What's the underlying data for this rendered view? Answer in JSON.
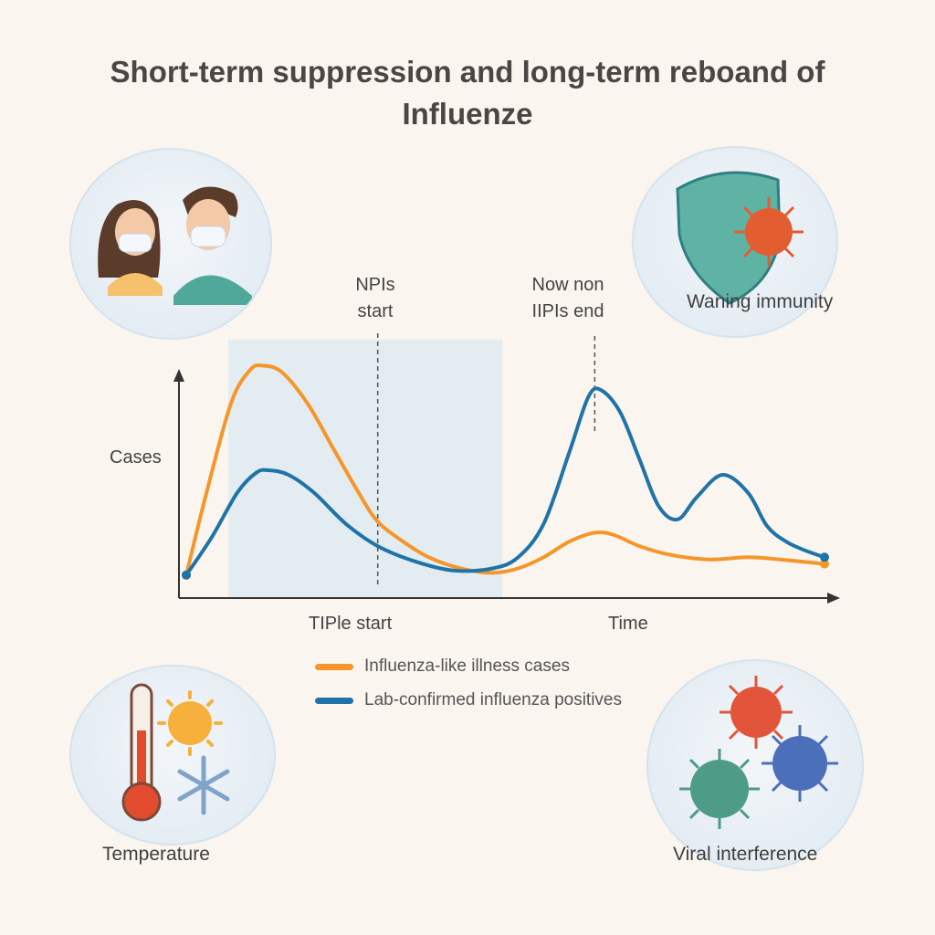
{
  "title": {
    "line1": "Short-term suppression and long-term reboand of",
    "line2": "Influenze"
  },
  "illustrations": {
    "masks": {
      "icon": "masked-people-icon"
    },
    "immunity": {
      "label": "Waning immunity",
      "icon": "shield-virus-icon"
    },
    "temperature": {
      "label": "Temperature",
      "icon": "thermometer-sun-snow-icon"
    },
    "viral": {
      "label": "Viral interference",
      "icon": "viruses-icon"
    }
  },
  "colors": {
    "ili": "#f5962a",
    "lab": "#1f73a8",
    "npi_band": "#cfe3f2",
    "axis": "#333333"
  },
  "chart_data": {
    "type": "line",
    "title": "Short-term suppression and long-term reboand of Influenze",
    "xlabel": "Time",
    "ylabel": "Cases",
    "xlim": [
      0,
      100
    ],
    "ylim": [
      0,
      100
    ],
    "annotations": {
      "npi_start": {
        "label_line1": "NPIs",
        "label_line2": "start",
        "x": 30
      },
      "npi_end": {
        "label_line1": "Now non",
        "label_line2": "IIPIs end",
        "x": 64
      },
      "x_marker_label": "TIPle start"
    },
    "series": [
      {
        "name": "Influenza-like illness cases",
        "color": "#f5962a",
        "x": [
          0,
          3,
          7,
          10,
          12,
          15,
          19,
          23,
          27,
          30,
          34,
          38,
          43,
          48,
          52,
          56,
          60,
          64,
          67,
          71,
          76,
          82,
          88,
          93,
          100
        ],
        "y": [
          5,
          40,
          82,
          97,
          99,
          96,
          82,
          62,
          42,
          29,
          20,
          13,
          8,
          6,
          8,
          13,
          20,
          24,
          23,
          18,
          14,
          12,
          13,
          12,
          10
        ]
      },
      {
        "name": "Lab-confirmed influenza positives",
        "color": "#1f73a8",
        "x": [
          0,
          4,
          8,
          11,
          13,
          16,
          20,
          25,
          30,
          36,
          42,
          48,
          52,
          56,
          60,
          63,
          65,
          68,
          71,
          74,
          77,
          80,
          84,
          88,
          91,
          94,
          97,
          100
        ],
        "y": [
          5,
          22,
          42,
          51,
          52,
          50,
          42,
          28,
          18,
          11,
          7,
          8,
          13,
          28,
          60,
          85,
          88,
          78,
          57,
          36,
          30,
          40,
          50,
          42,
          27,
          20,
          16,
          13
        ]
      }
    ],
    "legend": {
      "position": "bottom-center"
    }
  }
}
